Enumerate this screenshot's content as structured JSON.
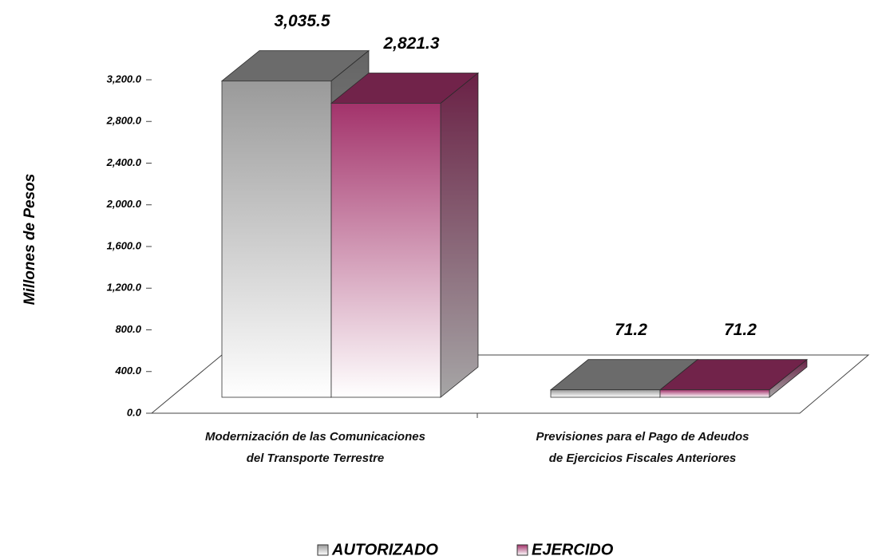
{
  "chart_data": {
    "type": "bar3d",
    "y_label": "Millones de Pesos",
    "categories": [
      "Modernización de las Comunicaciones\ndel Transporte Terrestre",
      "Previsiones para el Pago de Adeudos\nde Ejercicios Fiscales Anteriores"
    ],
    "series": [
      {
        "name": "AUTORIZADO",
        "color": "#9a9a9a",
        "values": [
          3035.5,
          71.2
        ],
        "value_labels": [
          "3,035.5",
          "71.2"
        ]
      },
      {
        "name": "EJERCIDO",
        "color": "#a3336b",
        "values": [
          2821.3,
          71.2
        ],
        "value_labels": [
          "2,821.3",
          "71.2"
        ]
      }
    ],
    "ylim": [
      0,
      3200
    ],
    "yticks": [
      {
        "value": 0,
        "label": "0.0"
      },
      {
        "value": 400,
        "label": "400.0"
      },
      {
        "value": 800,
        "label": "800.0"
      },
      {
        "value": 1200,
        "label": "1,200.0"
      },
      {
        "value": 1600,
        "label": "1,600.0"
      },
      {
        "value": 2000,
        "label": "2,000.0"
      },
      {
        "value": 2400,
        "label": "2,400.0"
      },
      {
        "value": 2800,
        "label": "2,800.0"
      },
      {
        "value": 3200,
        "label": "3,200.0"
      }
    ],
    "legend": "bottom"
  }
}
